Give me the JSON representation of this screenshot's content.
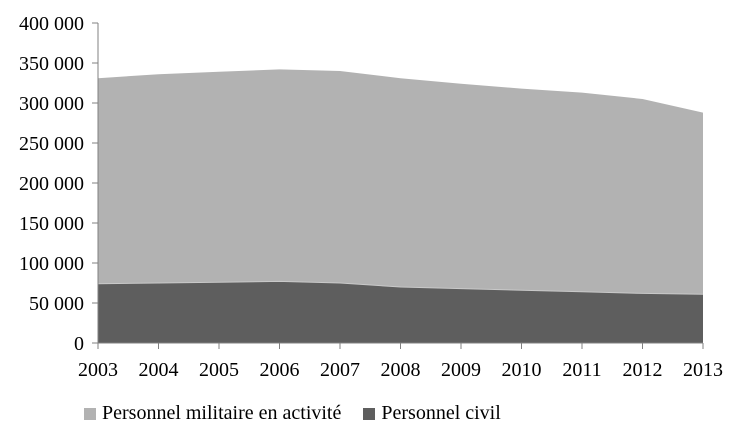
{
  "chart_data": {
    "type": "area",
    "stacked": true,
    "title": "",
    "xlabel": "",
    "ylabel": "",
    "categories": [
      "2003",
      "2004",
      "2005",
      "2006",
      "2007",
      "2008",
      "2009",
      "2010",
      "2011",
      "2012",
      "2013"
    ],
    "series": [
      {
        "name": "Personnel civil",
        "color": "#5e5e5e",
        "values": [
          74000,
          75000,
          76000,
          77000,
          75000,
          70000,
          68000,
          66000,
          64000,
          62000,
          61000
        ]
      },
      {
        "name": "Personnel militaire en activité",
        "color": "#b2b2b2",
        "values": [
          257000,
          261000,
          263000,
          265000,
          265000,
          261000,
          256000,
          252000,
          249000,
          243000,
          227000
        ]
      }
    ],
    "totals": [
      331000,
      336000,
      339000,
      342000,
      340000,
      331000,
      324000,
      318000,
      313000,
      305000,
      288000
    ],
    "ylim": [
      0,
      400000
    ],
    "ytick_interval": 50000,
    "ytick_labels": [
      "0",
      "50 000",
      "100 000",
      "150 000",
      "200 000",
      "250 000",
      "300 000",
      "350 000",
      "400 000"
    ],
    "grid": false,
    "axis_color": "#808080",
    "separator_color": "#c9c9c9",
    "text_color": "#000000",
    "legend": {
      "position": "bottom",
      "entries": [
        {
          "label": "Personnel militaire en activité",
          "color": "#b2b2b2"
        },
        {
          "label": "Personnel civil",
          "color": "#5e5e5e"
        }
      ]
    }
  }
}
